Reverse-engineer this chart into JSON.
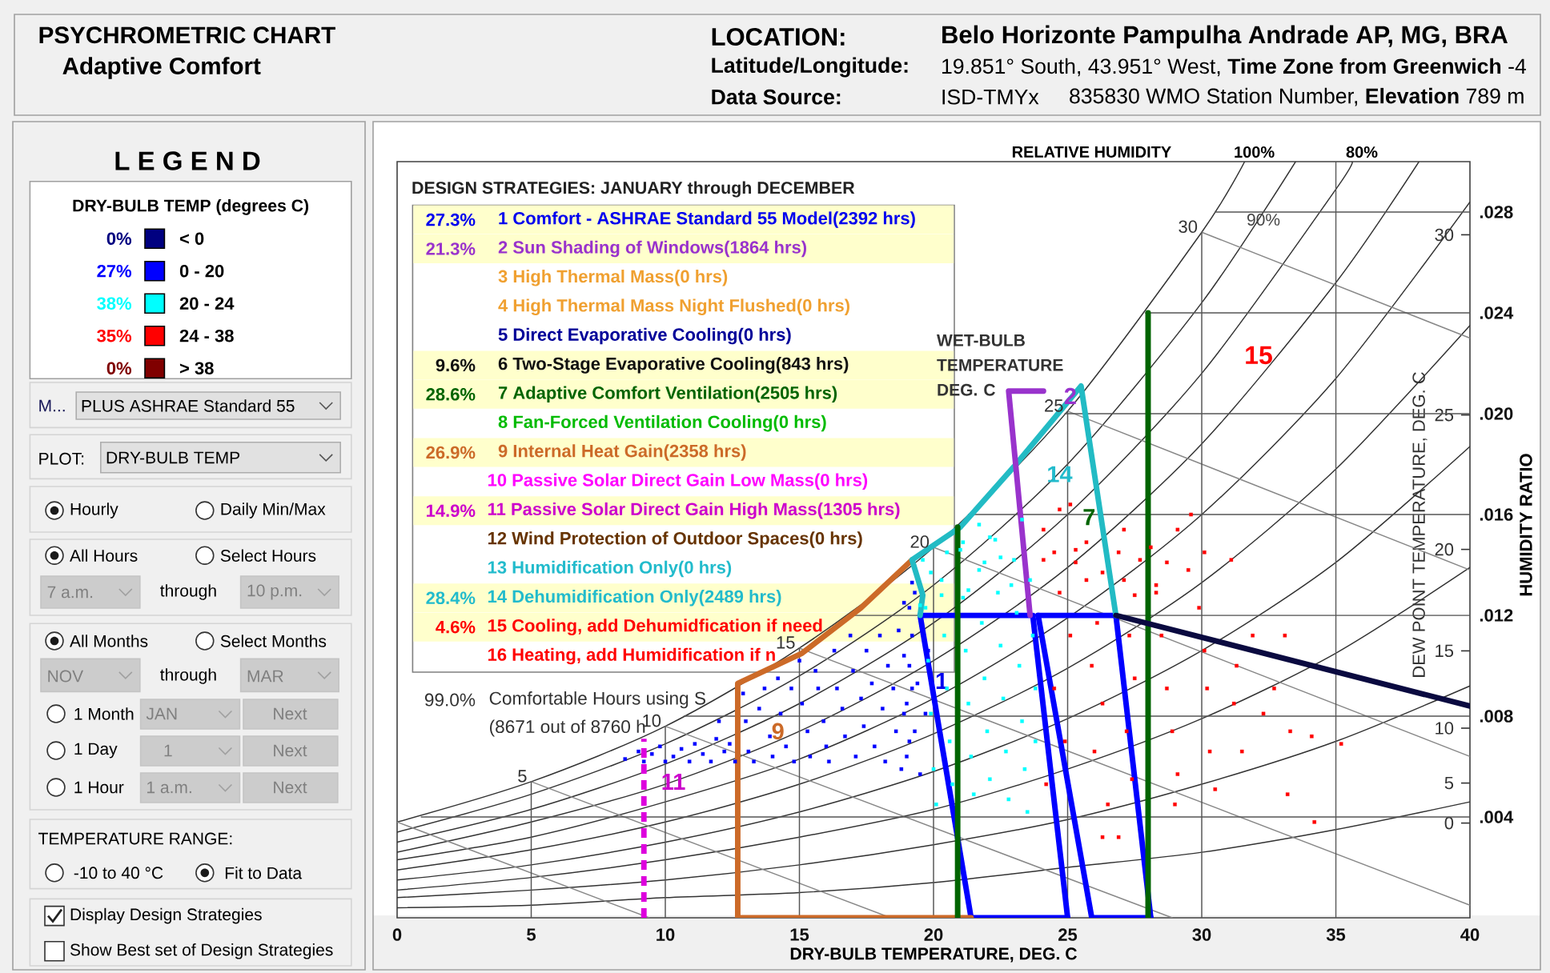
{
  "chart_data": [
    {
      "type": "scatter",
      "title": "PSYCHROMETRIC CHART",
      "subtitle": "Adaptive Comfort",
      "xlabel": "DRY-BULB TEMPERATURE, DEG. C",
      "ylabel": "HUMIDITY RATIO",
      "legend_title": "DRY-BULB TEMP (degrees C)",
      "legend": "left",
      "xlim": [
        0,
        40
      ],
      "xticks": [
        0,
        5,
        10,
        15,
        20,
        25,
        30,
        35,
        40
      ],
      "ylim": [
        0,
        0.03
      ],
      "yticks": [
        {
          "value": 0.004,
          "label": ".004"
        },
        {
          "value": 0.008,
          "label": ".008"
        },
        {
          "value": 0.012,
          "label": ".012"
        },
        {
          "value": 0.016,
          "label": ".016"
        },
        {
          "value": 0.02,
          "label": ".020"
        },
        {
          "value": 0.024,
          "label": ".024"
        },
        {
          "value": 0.028,
          "label": ".028"
        }
      ],
      "series": [
        {
          "type": "line",
          "color": "#333333",
          "x": [
            0,
            5,
            10,
            15,
            20,
            25,
            30,
            35,
            40
          ],
          "values": [
            0.0004,
            0.0005,
            0.0008,
            0.001,
            0.0014,
            0.002,
            0.0026,
            0.0035,
            0.0046
          ]
        },
        {
          "type": "line",
          "color": "#333333",
          "x": [
            0,
            5,
            10,
            15,
            20,
            25,
            30,
            35,
            40
          ],
          "values": [
            0.0008,
            0.0011,
            0.0015,
            0.0021,
            0.0029,
            0.0039,
            0.0053,
            0.007,
            0.0092
          ]
        },
        {
          "type": "line",
          "color": "#333333",
          "x": [
            0,
            5,
            10,
            15,
            20,
            25,
            30,
            35,
            40
          ],
          "values": [
            0.0011,
            0.0016,
            0.0023,
            0.0032,
            0.0043,
            0.0059,
            0.0079,
            0.0105,
            0.0139
          ]
        },
        {
          "type": "line",
          "color": "#333333",
          "x": [
            0,
            5,
            10,
            15,
            20,
            25,
            30,
            35,
            40
          ],
          "values": [
            0.0015,
            0.0021,
            0.003,
            0.0042,
            0.0058,
            0.0079,
            0.0106,
            0.0141,
            0.0187
          ]
        },
        {
          "type": "line",
          "color": "#333333",
          "x": [
            0,
            5,
            10,
            15,
            20,
            25,
            30,
            35,
            40
          ],
          "values": [
            0.0019,
            0.0027,
            0.0038,
            0.0053,
            0.0073,
            0.0099,
            0.0133,
            0.0178,
            0.0235
          ]
        },
        {
          "type": "line",
          "color": "#333333",
          "x": [
            0,
            5,
            10,
            15,
            20,
            25,
            30,
            35,
            40
          ],
          "values": [
            0.0023,
            0.0032,
            0.0046,
            0.0063,
            0.0087,
            0.0119,
            0.016,
            0.0214,
            0.0284
          ]
        },
        {
          "type": "line",
          "color": "#333333",
          "x": [
            0,
            5,
            10,
            15,
            20,
            25,
            30,
            35,
            38.1
          ],
          "values": [
            0.0026,
            0.0038,
            0.0053,
            0.0074,
            0.0102,
            0.0139,
            0.0188,
            0.0252,
            0.03
          ]
        },
        {
          "type": "line",
          "color": "#333333",
          "x": [
            0,
            5,
            10,
            15,
            20,
            25,
            30,
            35,
            35.6
          ],
          "values": [
            0.003,
            0.0043,
            0.0061,
            0.0085,
            0.0117,
            0.016,
            0.0216,
            0.0289,
            0.03
          ]
        },
        {
          "type": "line",
          "color": "#333333",
          "x": [
            0,
            5,
            10,
            15,
            20,
            25,
            30,
            33.5
          ],
          "values": [
            0.0034,
            0.0049,
            0.0069,
            0.0096,
            0.0132,
            0.018,
            0.0244,
            0.03
          ]
        },
        {
          "type": "line",
          "color": "#333333",
          "x": [
            0,
            5,
            10,
            15,
            20,
            25,
            30,
            31.6
          ],
          "values": [
            0.0038,
            0.0054,
            0.0076,
            0.0107,
            0.0147,
            0.0201,
            0.0272,
            0.03
          ]
        },
        {
          "type": "line",
          "color": "#888888",
          "x": [
            0,
            9.4
          ],
          "values": [
            0.0038,
            0
          ]
        },
        {
          "type": "line",
          "color": "#888888",
          "x": [
            5,
            18.4
          ],
          "values": [
            0.0054,
            0
          ]
        },
        {
          "type": "line",
          "color": "#888888",
          "x": [
            10,
            28.9
          ],
          "values": [
            0.0076,
            0
          ]
        },
        {
          "type": "line",
          "color": "#888888",
          "x": [
            15,
            40
          ],
          "values": [
            0.0107,
            0.0005
          ]
        },
        {
          "type": "line",
          "color": "#888888",
          "x": [
            20,
            40
          ],
          "values": [
            0.0147,
            0.0064
          ]
        },
        {
          "type": "line",
          "color": "#888888",
          "x": [
            25,
            40
          ],
          "values": [
            0.0201,
            0.0138
          ]
        },
        {
          "type": "line",
          "color": "#888888",
          "x": [
            30,
            40
          ],
          "values": [
            0.0272,
            0.023
          ]
        },
        {
          "type": "line",
          "color": "#555555",
          "x": [
            5,
            5
          ],
          "values": [
            0,
            0.0054
          ]
        },
        {
          "type": "line",
          "color": "#555555",
          "x": [
            10,
            10
          ],
          "values": [
            0,
            0.0076
          ]
        },
        {
          "type": "line",
          "color": "#555555",
          "x": [
            15,
            15
          ],
          "values": [
            0,
            0.0107
          ]
        },
        {
          "type": "line",
          "color": "#555555",
          "x": [
            20,
            20
          ],
          "values": [
            0,
            0.0147
          ]
        },
        {
          "type": "line",
          "color": "#555555",
          "x": [
            25,
            25
          ],
          "values": [
            0,
            0.0201
          ]
        },
        {
          "type": "line",
          "color": "#555555",
          "x": [
            30,
            30
          ],
          "values": [
            0,
            0.0272
          ]
        },
        {
          "type": "line",
          "color": "#555555",
          "x": [
            35,
            35
          ],
          "values": [
            0,
            0.03
          ]
        },
        {
          "type": "line",
          "color": "#555555",
          "x": [
            0.9,
            40
          ],
          "values": [
            0.004,
            0.004
          ]
        },
        {
          "type": "line",
          "color": "#555555",
          "x": [
            10.7,
            40
          ],
          "values": [
            0.008,
            0.008
          ]
        },
        {
          "type": "line",
          "color": "#555555",
          "x": [
            16.8,
            40
          ],
          "values": [
            0.012,
            0.012
          ]
        },
        {
          "type": "line",
          "color": "#555555",
          "x": [
            21.3,
            40
          ],
          "values": [
            0.016,
            0.016
          ]
        },
        {
          "type": "line",
          "color": "#555555",
          "x": [
            24.9,
            40
          ],
          "values": [
            0.02,
            0.02
          ]
        },
        {
          "type": "line",
          "color": "#555555",
          "x": [
            27.9,
            40
          ],
          "values": [
            0.024,
            0.024
          ]
        },
        {
          "type": "line",
          "color": "#555555",
          "x": [
            30.5,
            40
          ],
          "values": [
            0.028,
            0.028
          ]
        },
        {
          "name": "< 0",
          "type": "scatter",
          "color": "#000080"
        },
        {
          "name": "0 - 20",
          "type": "scatter",
          "marker": "square",
          "color": "#0000ff",
          "x": [
            8.5,
            9.0,
            9.2,
            9.5,
            9.8,
            10.0,
            10.3,
            10.6,
            10.9,
            11.1,
            11.4,
            11.7,
            11.9,
            12.0,
            12.2,
            12.4,
            12.6,
            12.9,
            13.0,
            13.1,
            13.3,
            13.5,
            13.7,
            13.9,
            14.0,
            14.2,
            14.3,
            14.5,
            14.7,
            14.8,
            15.0,
            15.1,
            15.3,
            15.4,
            15.6,
            15.7,
            15.9,
            16.0,
            16.1,
            16.3,
            16.4,
            16.6,
            16.7,
            16.9,
            17.0,
            17.1,
            17.3,
            17.4,
            17.5,
            17.7,
            17.8,
            18.0,
            18.1,
            18.2,
            18.3,
            18.5,
            18.6,
            18.7,
            18.8,
            18.9,
            19.0,
            19.1,
            19.1,
            19.2,
            19.3,
            19.4,
            19.5,
            19.7,
            19.8,
            18.9,
            19.1,
            19.2,
            18.9,
            19.3,
            19.0,
            19.2
          ],
          "values": [
            0.0063,
            0.0066,
            0.0062,
            0.0065,
            0.0068,
            0.0062,
            0.0064,
            0.0067,
            0.0062,
            0.0069,
            0.0065,
            0.0062,
            0.0071,
            0.0078,
            0.0066,
            0.0069,
            0.0062,
            0.0089,
            0.0078,
            0.0066,
            0.0062,
            0.0083,
            0.0091,
            0.0072,
            0.0064,
            0.0095,
            0.0081,
            0.0068,
            0.0091,
            0.0062,
            0.0102,
            0.0085,
            0.0074,
            0.0064,
            0.0098,
            0.0091,
            0.0078,
            0.0068,
            0.0062,
            0.0106,
            0.0091,
            0.0083,
            0.0072,
            0.0112,
            0.0098,
            0.0064,
            0.0087,
            0.0076,
            0.0106,
            0.0093,
            0.0068,
            0.0112,
            0.0083,
            0.0062,
            0.01,
            0.0091,
            0.0074,
            0.0114,
            0.0059,
            0.0104,
            0.0085,
            0.0123,
            0.007,
            0.0112,
            0.0129,
            0.0093,
            0.0057,
            0.0081,
            0.0106,
            0.0125,
            0.01,
            0.0091,
            0.0081,
            0.0074,
            0.0064,
            0.0133
          ]
        },
        {
          "name": "20 - 24",
          "type": "scatter",
          "marker": "square",
          "color": "#00ffff",
          "x": [
            19.6,
            19.7,
            19.8,
            19.9,
            20.0,
            20.1,
            20.3,
            20.4,
            20.5,
            20.6,
            20.7,
            21.0,
            21.1,
            21.2,
            21.3,
            21.4,
            21.5,
            21.7,
            21.8,
            21.9,
            22.0,
            22.1,
            22.3,
            22.4,
            22.5,
            22.6,
            22.7,
            22.8,
            23.0,
            23.1,
            23.2,
            23.3,
            23.4,
            23.6,
            23.7,
            23.8,
            23.8,
            23.5,
            19.5,
            19.9,
            20.5,
            21.1,
            21.7,
            22.1,
            22.5,
            22.9,
            21.3,
            20.3,
            23.3,
            21.9
          ],
          "values": [
            0.0142,
            0.0123,
            0.0102,
            0.0081,
            0.0059,
            0.0045,
            0.0134,
            0.0112,
            0.0091,
            0.007,
            0.0053,
            0.0146,
            0.0127,
            0.0106,
            0.0085,
            0.0064,
            0.0049,
            0.0138,
            0.0117,
            0.0095,
            0.0074,
            0.0055,
            0.015,
            0.0129,
            0.0108,
            0.0087,
            0.0066,
            0.0047,
            0.0142,
            0.0121,
            0.01,
            0.0078,
            0.0059,
            0.0134,
            0.0112,
            0.0091,
            0.007,
            0.0042,
            0.0124,
            0.0137,
            0.0145,
            0.0149,
            0.0156,
            0.0151,
            0.0143,
            0.0132,
            0.013,
            0.0128,
            0.0158,
            0.0141
          ]
        },
        {
          "name": "24 - 38",
          "type": "scatter",
          "marker": "square",
          "color": "#ff0000",
          "x": [
            24.1,
            24.7,
            25.1,
            24.5,
            25.3,
            25.7,
            26.3,
            26.9,
            27.1,
            28.1,
            28.7,
            29.1,
            29.6,
            30.1,
            28.3,
            27.5,
            24.1,
            24.7,
            25.1,
            24.5,
            24.9,
            24.2,
            25.3,
            25.7,
            26.1,
            25.9,
            26.3,
            26.0,
            26.5,
            26.9,
            27.1,
            27.3,
            27.5,
            27.2,
            27.4,
            27.7,
            28.3,
            28.5,
            28.7,
            28.9,
            29.1,
            29.0,
            29.5,
            29.9,
            30.1,
            30.2,
            30.3,
            30.5,
            31.1,
            31.3,
            31.2,
            31.5,
            31.9,
            32.3,
            32.7,
            33.1,
            33.3,
            33.2,
            34.1,
            34.2,
            35.2,
            26.3
          ],
          "values": [
            0.0154,
            0.0162,
            0.0164,
            0.0145,
            0.0141,
            0.0149,
            0.0137,
            0.0145,
            0.0154,
            0.0147,
            0.0141,
            0.0154,
            0.016,
            0.0145,
            0.0132,
            0.0128,
            0.0142,
            0.0129,
            0.0112,
            0.0091,
            0.007,
            0.0053,
            0.0146,
            0.0134,
            0.0117,
            0.01,
            0.0085,
            0.0066,
            0.0045,
            0.0032,
            0.0134,
            0.0112,
            0.0095,
            0.0074,
            0.0055,
            0.0142,
            0.0129,
            0.0112,
            0.0091,
            0.0074,
            0.0057,
            0.0045,
            0.0138,
            0.0123,
            0.0106,
            0.0091,
            0.0066,
            0.0051,
            0.0142,
            0.01,
            0.0085,
            0.0066,
            0.0112,
            0.0081,
            0.0091,
            0.0112,
            0.0074,
            0.0049,
            0.0072,
            0.0038,
            0.0069,
            0.0032
          ]
        },
        {
          "name": "> 38",
          "type": "scatter",
          "color": "#800000"
        },
        {
          "type": "line",
          "color": "#0000ff",
          "x": [
            19.5,
            23.7,
            25.0
          ],
          "values": [
            0.012,
            0.012,
            0
          ]
        },
        {
          "type": "line",
          "color": "#0000ff",
          "x": [
            25.0,
            21.4,
            19.5
          ],
          "values": [
            0,
            0,
            0.012
          ]
        },
        {
          "type": "line",
          "color": "#0000ff",
          "x": [
            23.9,
            26.8,
            28.1
          ],
          "values": [
            0.012,
            0.012,
            0
          ]
        },
        {
          "type": "line",
          "color": "#0000ff",
          "x": [
            28.1,
            25.9,
            23.9
          ],
          "values": [
            0,
            0,
            0.012
          ]
        },
        {
          "type": "line",
          "color": "#cc6a28",
          "x": [
            21.4,
            12.7,
            12.7,
            15.1,
            17.3,
            19.2
          ],
          "values": [
            0,
            0,
            0.0093,
            0.0105,
            0.0123,
            0.0142
          ]
        },
        {
          "type": "line",
          "color": "#22bbc4",
          "x": [
            19.5,
            19.6,
            19.2,
            21.0,
            23.0,
            25.5,
            26.8
          ],
          "values": [
            0.012,
            0.0128,
            0.0142,
            0.0155,
            0.0179,
            0.0211,
            0.012
          ]
        },
        {
          "type": "line",
          "color": "#006400",
          "x": [
            20.9,
            20.9
          ],
          "values": [
            0,
            0.0155
          ]
        },
        {
          "type": "line",
          "color": "#006400",
          "x": [
            28.0,
            28.0
          ],
          "values": [
            0,
            0.024
          ]
        },
        {
          "type": "line",
          "color": "#dd00dd",
          "line_style": "dashed",
          "x": [
            9.2,
            9.2
          ],
          "values": [
            0,
            0.0071
          ]
        },
        {
          "type": "line",
          "color": "#9933cc",
          "x": [
            23.6,
            22.8,
            24.1
          ],
          "values": [
            0.012,
            0.0209,
            0.0209
          ]
        },
        {
          "type": "line",
          "color": "#0a0a40",
          "x": [
            26.8,
            40
          ],
          "values": [
            0.012,
            0.0084
          ]
        }
      ],
      "annotations": [
        "LOCATION:",
        "Belo Horizonte Pampulha Andrade AP, MG, BRA",
        "Latitude/Longitude:",
        "19.851° South, 43.951° West, **Time Zone from Greenwich** -4",
        "Data Source:",
        "ISD-TMYx",
        "835830 WMO Station Number, **Elevation** 789 m",
        "0%",
        "27%",
        "38%",
        "35%",
        "0%",
        "RELATIVE HUMIDITY",
        "100%",
        "80%",
        "WET-BULB TEMPERATURE DEG. C",
        "15",
        "DEW POINT TEMPERATURE, DEG. C",
        "0",
        "5",
        "10",
        "15",
        "20",
        "25",
        "30",
        {
          "text": "90%",
          "x": 32.3,
          "y": 0.0277
        },
        {
          "text": "5",
          "x": 5,
          "y": 0.0054
        },
        {
          "text": "10",
          "x": 10,
          "y": 0.0076
        },
        {
          "text": "15",
          "x": 15,
          "y": 0.0107
        },
        {
          "text": "20",
          "x": 20,
          "y": 0.0147
        },
        {
          "text": "25",
          "x": 25,
          "y": 0.0201
        },
        {
          "text": "30",
          "x": 30,
          "y": 0.0272
        },
        {
          "text": "14",
          "x": 24.7,
          "y": 0.0176
        },
        {
          "text": "7",
          "x": 25.8,
          "y": 0.0159
        },
        {
          "text": "2",
          "x": 25.1,
          "y": 0.0207
        },
        {
          "text": "1",
          "x": 20.3,
          "y": 0.0094
        },
        {
          "text": "9",
          "x": 14.2,
          "y": 0.0074
        },
        {
          "text": "11",
          "x": 10.3,
          "y": 0.0054
        }
      ]
    },
    {
      "type": "other",
      "title": "DESIGN STRATEGIES: JANUARY through DECEMBER",
      "annotations": [
        "27.3%",
        "1 Comfort - ASHRAE Standard 55 Model(2392 hrs)",
        "21.3%",
        "2 Sun Shading of Windows(1864 hrs)",
        "3 High Thermal Mass(0 hrs)",
        "4 High Thermal Mass Night Flushed(0 hrs)",
        "5 Direct Evaporative Cooling(0 hrs)",
        "9.6%",
        "6 Two-Stage Evaporative Cooling(843 hrs)",
        "28.6%",
        "7 Adaptive Comfort Ventilation(2505 hrs)",
        "8 Fan-Forced Ventilation Cooling(0 hrs)",
        "26.9%",
        "9 Internal Heat Gain(2358 hrs)",
        "10 Passive Solar Direct Gain Low Mass(0 hrs)",
        "14.9%",
        "11 Passive Solar Direct Gain High Mass(1305 hrs)",
        "12 Wind Protection of Outdoor Spaces(0 hrs)",
        "13 Humidification Only(0 hrs)",
        "28.4%",
        "14 Dehumidification Only(2489 hrs)",
        "4.6%",
        "15 Cooling, add Dehumidfication if need",
        "16 Heating, add Humidification if n",
        "99.0%",
        "Comfortable Hours using S",
        "(8671 out of 8760 h"
      ]
    },
    {
      "type": "other",
      "annotations": [
        "L E G E N D",
        "M...",
        "PLUS ASHRAE Standard 55",
        "PLOT:",
        "DRY-BULB TEMP",
        "Hourly",
        "Daily Min/Max",
        "All Hours",
        "Select Hours",
        "7 a.m.",
        "through",
        "10 p.m.",
        "All Months",
        "Select Months",
        "NOV",
        "through",
        "MAR",
        "1 Month",
        "JAN",
        "Next",
        "1 Day",
        "1",
        "Next",
        "1 Hour",
        "1 a.m.",
        "Next",
        "TEMPERATURE RANGE:",
        "-10 to 40 °C",
        "Fit to Data",
        "Display Design Strategies",
        "Show Best set of Design Strategies"
      ]
    }
  ]
}
